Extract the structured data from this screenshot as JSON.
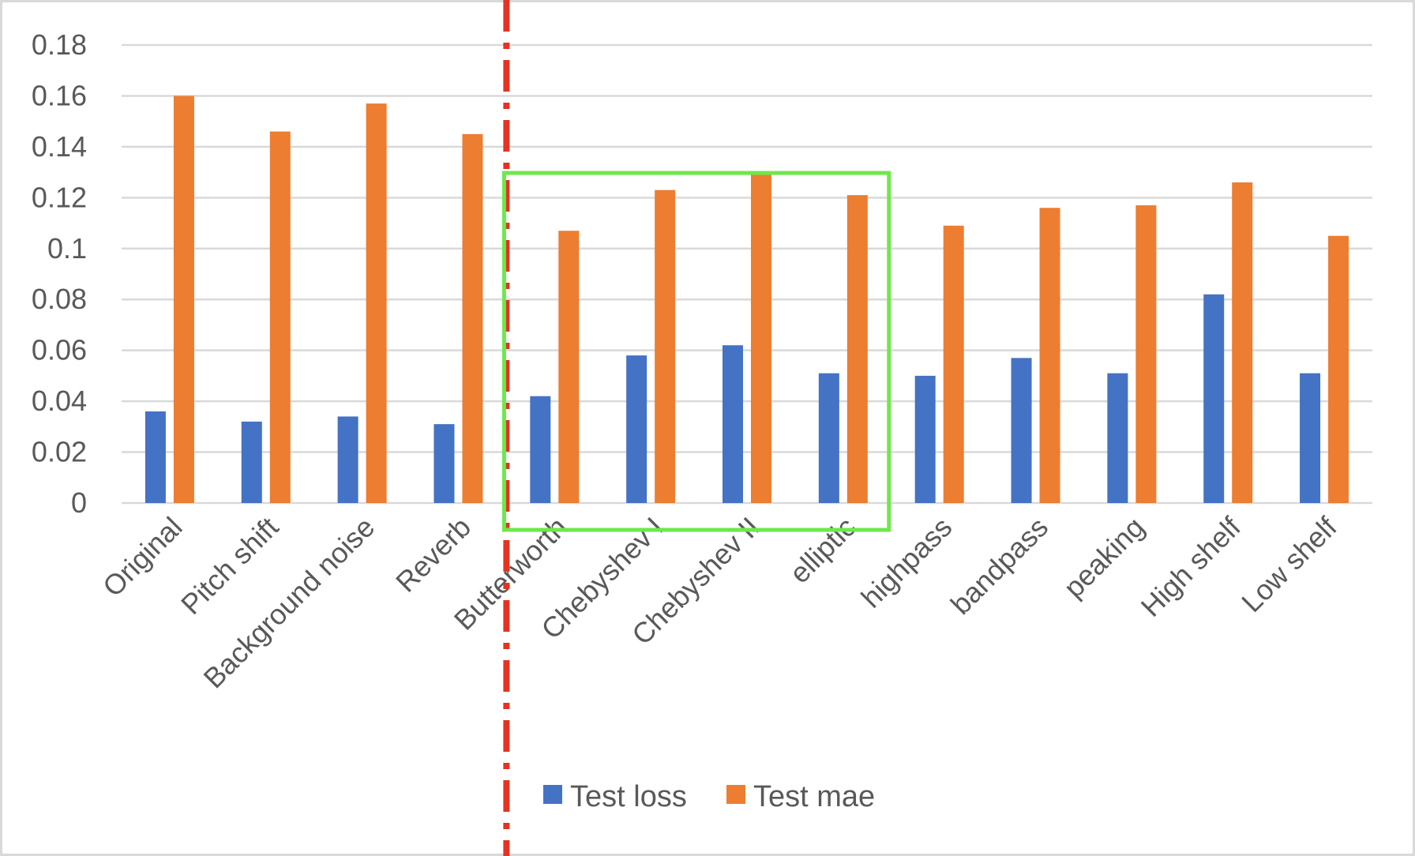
{
  "chart_data": {
    "type": "bar",
    "title": "",
    "xlabel": "",
    "ylabel": "",
    "ylim": [
      0,
      0.18
    ],
    "yticks": [
      "0",
      "0.02",
      "0.04",
      "0.06",
      "0.08",
      "0.1",
      "0.12",
      "0.14",
      "0.16",
      "0.18"
    ],
    "grid": true,
    "legend_position": "bottom",
    "categories": [
      "Original",
      "Pitch shift",
      "Background noise",
      "Reverb",
      "Butterworth",
      "Chebyshev I",
      "Chebyshev II",
      "elliptic",
      "highpass",
      "bandpass",
      "peaking",
      "High shelf",
      "Low shelf"
    ],
    "series": [
      {
        "name": "Test loss",
        "color": "#4472c4",
        "values": [
          0.036,
          0.032,
          0.034,
          0.031,
          0.042,
          0.058,
          0.062,
          0.051,
          0.05,
          0.057,
          0.051,
          0.082,
          0.051
        ]
      },
      {
        "name": "Test mae",
        "color": "#ed7d31",
        "values": [
          0.16,
          0.146,
          0.157,
          0.145,
          0.107,
          0.123,
          0.129,
          0.121,
          0.109,
          0.116,
          0.117,
          0.126,
          0.105
        ]
      }
    ],
    "annotations": {
      "divider_line": {
        "style": "dash-dot",
        "color": "#e53222",
        "after_category": "Reverb"
      },
      "highlight_box": {
        "color": "#6ee84c",
        "categories": [
          "Butterworth",
          "Chebyshev I",
          "Chebyshev II",
          "elliptic"
        ]
      }
    }
  }
}
